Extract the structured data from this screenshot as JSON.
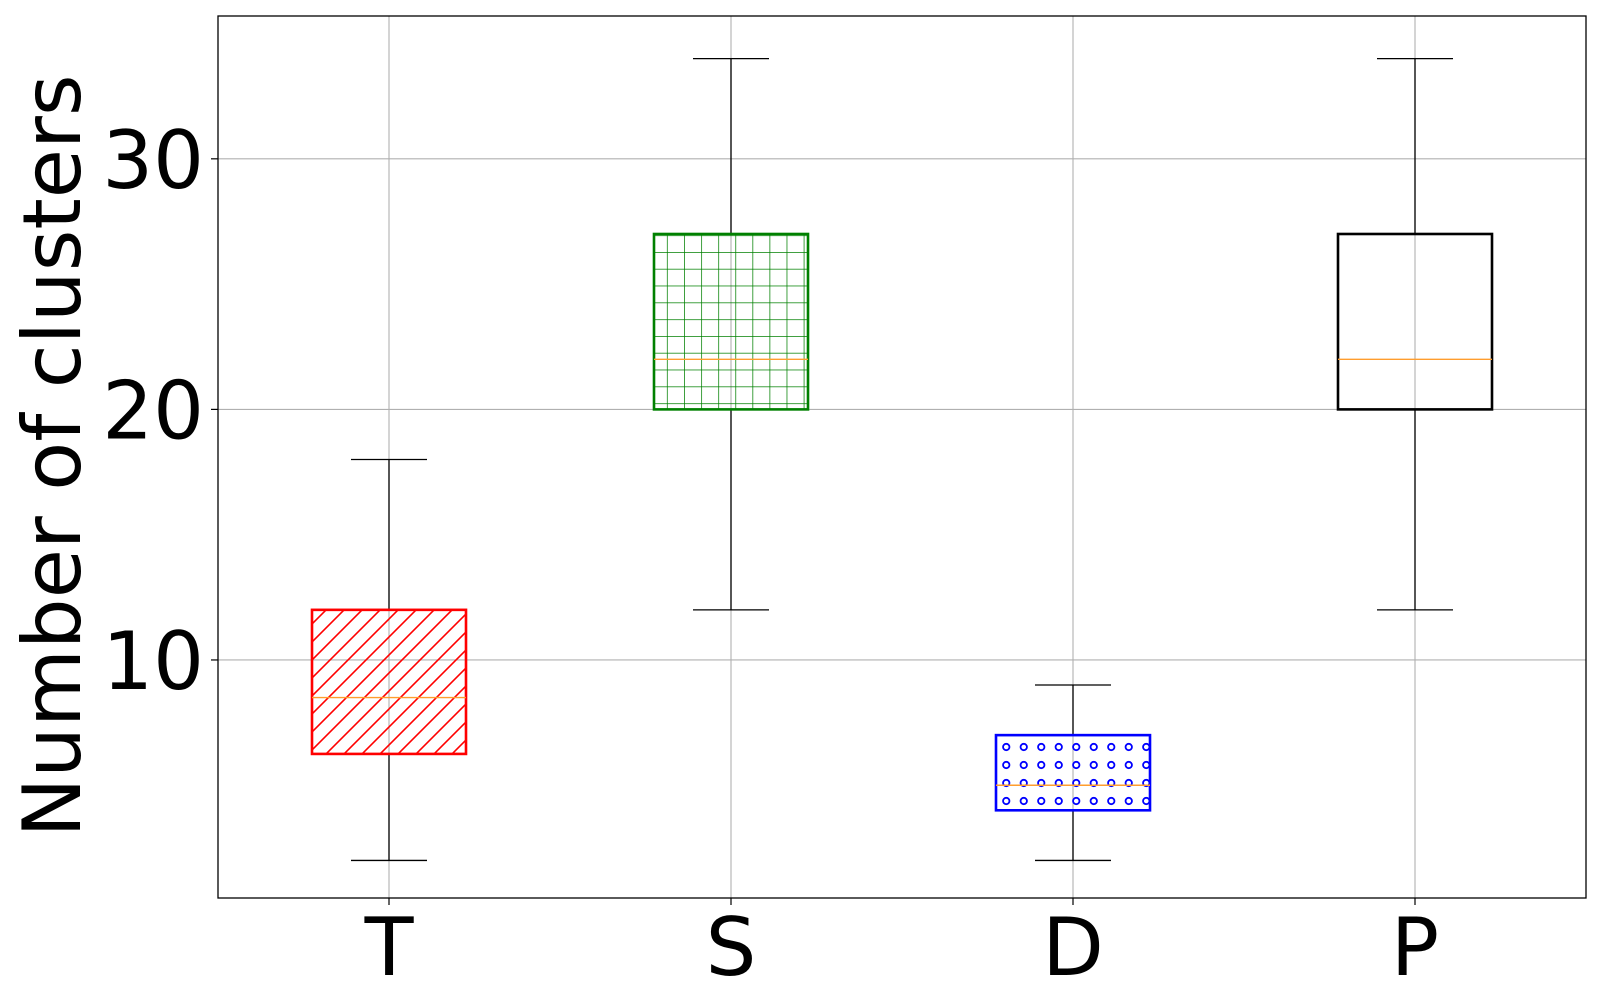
{
  "chart_data": {
    "type": "box",
    "ylabel": "Number of clusters",
    "xlabel": "",
    "title": "",
    "categories": [
      "T",
      "S",
      "D",
      "P"
    ],
    "ylim": [
      0.5,
      35.7
    ],
    "yticks": [
      10,
      20,
      30
    ],
    "grid": true,
    "boxes": [
      {
        "label": "T",
        "whisker_low": 2,
        "q1": 6.25,
        "median": 8.5,
        "q3": 12,
        "whisker_high": 18,
        "color": "#ff0000",
        "hatch": "diagonal"
      },
      {
        "label": "S",
        "whisker_low": 12,
        "q1": 20,
        "median": 22,
        "q3": 27,
        "whisker_high": 34,
        "color": "#008000",
        "hatch": "grid"
      },
      {
        "label": "D",
        "whisker_low": 2,
        "q1": 4,
        "median": 5,
        "q3": 7,
        "whisker_high": 9,
        "color": "#0000ff",
        "hatch": "circles"
      },
      {
        "label": "P",
        "whisker_low": 12,
        "q1": 20,
        "median": 22,
        "q3": 27,
        "whisker_high": 34,
        "color": "#000000",
        "hatch": "none"
      }
    ],
    "median_color": "#ff9d2e",
    "grid_color": "#b0b0b0"
  }
}
